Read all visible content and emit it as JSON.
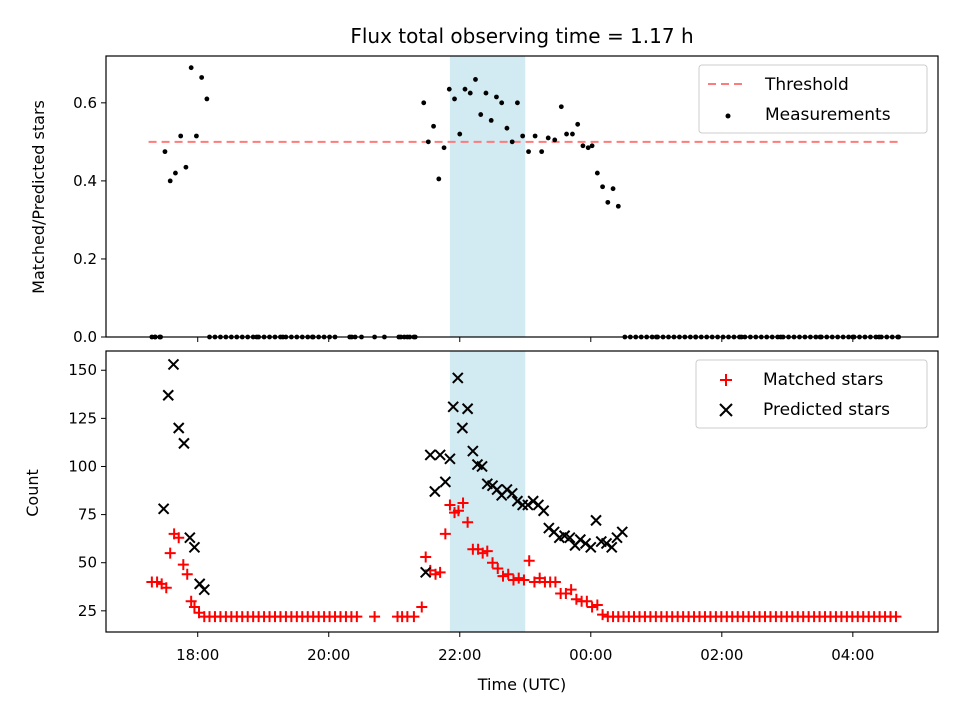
{
  "chart_data": [
    {
      "type": "scatter",
      "title": "Flux total observing time = 1.17 h",
      "xlabel": "",
      "ylabel": "Matched/Predicted stars",
      "ylim": [
        0,
        0.72
      ],
      "yticks": [
        "0.0",
        "0.2",
        "0.4",
        "0.6"
      ],
      "highlight_band": {
        "start": 21.85,
        "end": 23.0,
        "color": "#add8e6"
      },
      "legend": {
        "placement": "top-right",
        "entries": [
          "Threshold",
          "Measurements"
        ]
      },
      "threshold": {
        "name": "Threshold",
        "value": 0.5,
        "x_start": 17.25,
        "x_end": 28.7,
        "color": "#ff7b7b"
      },
      "series": [
        {
          "name": "Measurements",
          "color": "#000000",
          "x": [
            17.3,
            17.35,
            17.42,
            17.5,
            17.58,
            17.66,
            17.74,
            17.82,
            17.9,
            17.98,
            18.06,
            18.14,
            18.9,
            19.3,
            19.75,
            20.35,
            20.5,
            20.85,
            21.1,
            21.2,
            21.3,
            21.45,
            21.52,
            21.6,
            21.68,
            21.76,
            21.84,
            21.92,
            22.0,
            22.08,
            22.16,
            22.24,
            22.32,
            22.4,
            22.48,
            22.56,
            22.64,
            22.72,
            22.8,
            22.88,
            22.96,
            23.05,
            23.15,
            23.25,
            23.35,
            23.45,
            23.55,
            23.63,
            23.72,
            23.8,
            23.88,
            23.96,
            24.02,
            24.1,
            24.18,
            24.26,
            24.34,
            24.42,
            25.0,
            25.6,
            26.3,
            26.9,
            27.5,
            28.0,
            28.4,
            28.7
          ],
          "y": [
            0.0,
            0.0,
            0.0,
            0.475,
            0.4,
            0.42,
            0.515,
            0.435,
            0.69,
            0.515,
            0.665,
            0.61,
            0.0,
            0.0,
            0.0,
            0.0,
            0.0,
            0.0,
            0.0,
            0.0,
            0.0,
            0.6,
            0.5,
            0.54,
            0.405,
            0.485,
            0.635,
            0.61,
            0.52,
            0.635,
            0.625,
            0.66,
            0.57,
            0.625,
            0.555,
            0.615,
            0.6,
            0.535,
            0.5,
            0.6,
            0.515,
            0.475,
            0.515,
            0.475,
            0.51,
            0.505,
            0.59,
            0.52,
            0.52,
            0.545,
            0.49,
            0.485,
            0.49,
            0.42,
            0.385,
            0.345,
            0.38,
            0.335,
            0.0,
            0.0,
            0.0,
            0.0,
            0.0,
            0.0,
            0.0,
            0.0
          ]
        }
      ],
      "zero_segments": [
        [
          17.35,
          17.42
        ],
        [
          18.18,
          20.08
        ],
        [
          20.32,
          20.4
        ],
        [
          20.7,
          20.72
        ],
        [
          21.07,
          21.3
        ],
        [
          24.52,
          28.7
        ]
      ],
      "zero_step_hours": 0.0833
    },
    {
      "type": "scatter",
      "title": "",
      "xlabel": "Time (UTC)",
      "ylabel": "Count",
      "xlim": [
        16.6,
        29.3
      ],
      "ylim": [
        14,
        160
      ],
      "xticks": [
        {
          "value": 18,
          "label": "18:00"
        },
        {
          "value": 20,
          "label": "20:00"
        },
        {
          "value": 22,
          "label": "22:00"
        },
        {
          "value": 24,
          "label": "00:00"
        },
        {
          "value": 26,
          "label": "02:00"
        },
        {
          "value": 28,
          "label": "04:00"
        }
      ],
      "yticks": [
        "25",
        "50",
        "75",
        "100",
        "125",
        "150"
      ],
      "highlight_band": {
        "start": 21.85,
        "end": 23.0,
        "color": "#add8e6"
      },
      "legend": {
        "placement": "top-right",
        "entries": [
          "Matched stars",
          "Predicted stars"
        ]
      },
      "series": [
        {
          "name": "Matched stars",
          "marker": "+",
          "color": "#ff0000",
          "x": [
            17.3,
            17.38,
            17.45,
            17.52,
            17.58,
            17.64,
            17.71,
            17.78,
            17.84,
            17.9,
            17.95,
            18.02,
            18.1,
            21.05,
            21.12,
            21.2,
            21.3,
            21.42,
            21.48,
            21.55,
            21.63,
            21.7,
            21.78,
            21.85,
            21.92,
            21.98,
            22.05,
            22.12,
            22.2,
            22.28,
            22.35,
            22.42,
            22.5,
            22.58,
            22.66,
            22.74,
            22.82,
            22.9,
            22.98,
            23.06,
            23.14,
            23.22,
            23.3,
            23.38,
            23.46,
            23.54,
            23.62,
            23.7,
            23.78,
            23.86,
            23.94,
            24.02,
            24.1,
            24.18,
            24.26,
            24.34,
            24.42,
            24.5,
            24.58
          ],
          "y": [
            40,
            40,
            39,
            37,
            55,
            65,
            63,
            49,
            44,
            30,
            27,
            24,
            22,
            22,
            22,
            22,
            22,
            27,
            53,
            46,
            44,
            45,
            65,
            80,
            76,
            77,
            81,
            71,
            57,
            57,
            55,
            56,
            50,
            47,
            43,
            44,
            41,
            42,
            41,
            51,
            40,
            42,
            40,
            40,
            40,
            34,
            34,
            36,
            31,
            30,
            30,
            27,
            28,
            23,
            22,
            22,
            22,
            22,
            22
          ],
          "const_segments": [
            [
              18.18,
              20.4,
              22
            ],
            [
              20.7,
              20.72,
              22
            ],
            [
              24.66,
              28.7,
              22
            ]
          ],
          "const_step_hours": 0.0833
        },
        {
          "name": "Predicted stars",
          "marker": "x",
          "color": "#000000",
          "x": [
            17.48,
            17.55,
            17.63,
            17.71,
            17.79,
            17.88,
            17.95,
            18.03,
            18.1,
            21.48,
            21.55,
            21.62,
            21.7,
            21.78,
            21.85,
            21.9,
            21.97,
            22.04,
            22.12,
            22.2,
            22.27,
            22.34,
            22.42,
            22.5,
            22.57,
            22.64,
            22.72,
            22.8,
            22.88,
            22.96,
            23.04,
            23.12,
            23.2,
            23.28,
            23.36,
            23.44,
            23.52,
            23.6,
            23.68,
            23.76,
            23.84,
            23.92,
            24.0,
            24.08,
            24.16,
            24.24,
            24.32,
            24.4,
            24.48
          ],
          "y": [
            78,
            137,
            153,
            120,
            112,
            63,
            58,
            39,
            36,
            45,
            106,
            87,
            106,
            92,
            104,
            131,
            146,
            120,
            130,
            108,
            101,
            100,
            91,
            90,
            88,
            85,
            88,
            86,
            82,
            80,
            80,
            82,
            80,
            77,
            68,
            66,
            63,
            64,
            63,
            59,
            62,
            60,
            58,
            72,
            61,
            60,
            58,
            63,
            66
          ]
        }
      ]
    }
  ]
}
